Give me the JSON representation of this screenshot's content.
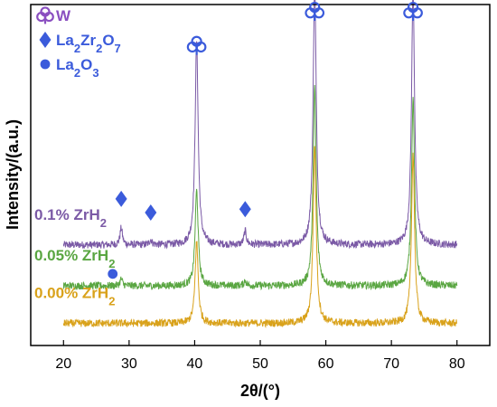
{
  "chart_data": {
    "type": "line",
    "title": "",
    "xlabel": "2θ/(°)",
    "ylabel": "Intensity/(a.u.)",
    "xlim": [
      15,
      85
    ],
    "ylim": [
      0,
      100
    ],
    "x_ticks": [
      20,
      30,
      40,
      50,
      60,
      70,
      80
    ],
    "y_ticks_shown": false,
    "grid": false,
    "legend_placement": "top-left",
    "legend": [
      {
        "marker": "club",
        "label": "W",
        "color": "#8a4fc0"
      },
      {
        "marker": "diamond",
        "label_parts": [
          {
            "t": "La"
          },
          {
            "t": "2",
            "sub": true
          },
          {
            "t": "Zr"
          },
          {
            "t": "2",
            "sub": true
          },
          {
            "t": "O"
          },
          {
            "t": "7",
            "sub": true
          }
        ],
        "color": "#3b5bdb"
      },
      {
        "marker": "circle",
        "label_parts": [
          {
            "t": "La"
          },
          {
            "t": "2",
            "sub": true
          },
          {
            "t": "O"
          },
          {
            "t": "3",
            "sub": true
          }
        ],
        "color": "#3b5bdb"
      }
    ],
    "series": [
      {
        "label_parts": [
          {
            "t": "0.1% ZrH"
          },
          {
            "t": "2",
            "sub": true
          }
        ],
        "color": "#7b5aa6",
        "baseline": 29.5,
        "peaks": [
          [
            28.8,
            5
          ],
          [
            33.3,
            1.5
          ],
          [
            40.3,
            60
          ],
          [
            47.7,
            4
          ],
          [
            58.3,
            77
          ],
          [
            73.3,
            75
          ]
        ]
      },
      {
        "label_parts": [
          {
            "t": "0.05% ZrH"
          },
          {
            "t": "2",
            "sub": true
          }
        ],
        "color": "#5aa642",
        "baseline": 17.5,
        "peaks": [
          [
            28.8,
            2
          ],
          [
            40.3,
            28
          ],
          [
            47.7,
            1.5
          ],
          [
            58.3,
            58
          ],
          [
            73.3,
            55
          ]
        ]
      },
      {
        "label_parts": [
          {
            "t": "0.00% ZrH"
          },
          {
            "t": "2",
            "sub": true
          }
        ],
        "color": "#d9a21b",
        "baseline": 6.5,
        "peaks": [
          [
            40.3,
            24
          ],
          [
            58.3,
            52
          ],
          [
            73.3,
            50
          ]
        ]
      }
    ],
    "annotations": [
      {
        "marker": "club",
        "x": 40.3,
        "y": 88,
        "color": "#3b5bdb"
      },
      {
        "marker": "club",
        "x": 58.3,
        "y": 98,
        "color": "#3b5bdb"
      },
      {
        "marker": "club",
        "x": 73.3,
        "y": 98,
        "color": "#3b5bdb"
      },
      {
        "marker": "diamond",
        "x": 28.8,
        "y": 43,
        "color": "#3b5bdb"
      },
      {
        "marker": "diamond",
        "x": 33.3,
        "y": 39,
        "color": "#3b5bdb"
      },
      {
        "marker": "diamond",
        "x": 47.7,
        "y": 40,
        "color": "#3b5bdb"
      },
      {
        "marker": "circle",
        "x": 27.5,
        "y": 21,
        "color": "#3b5bdb"
      }
    ]
  }
}
